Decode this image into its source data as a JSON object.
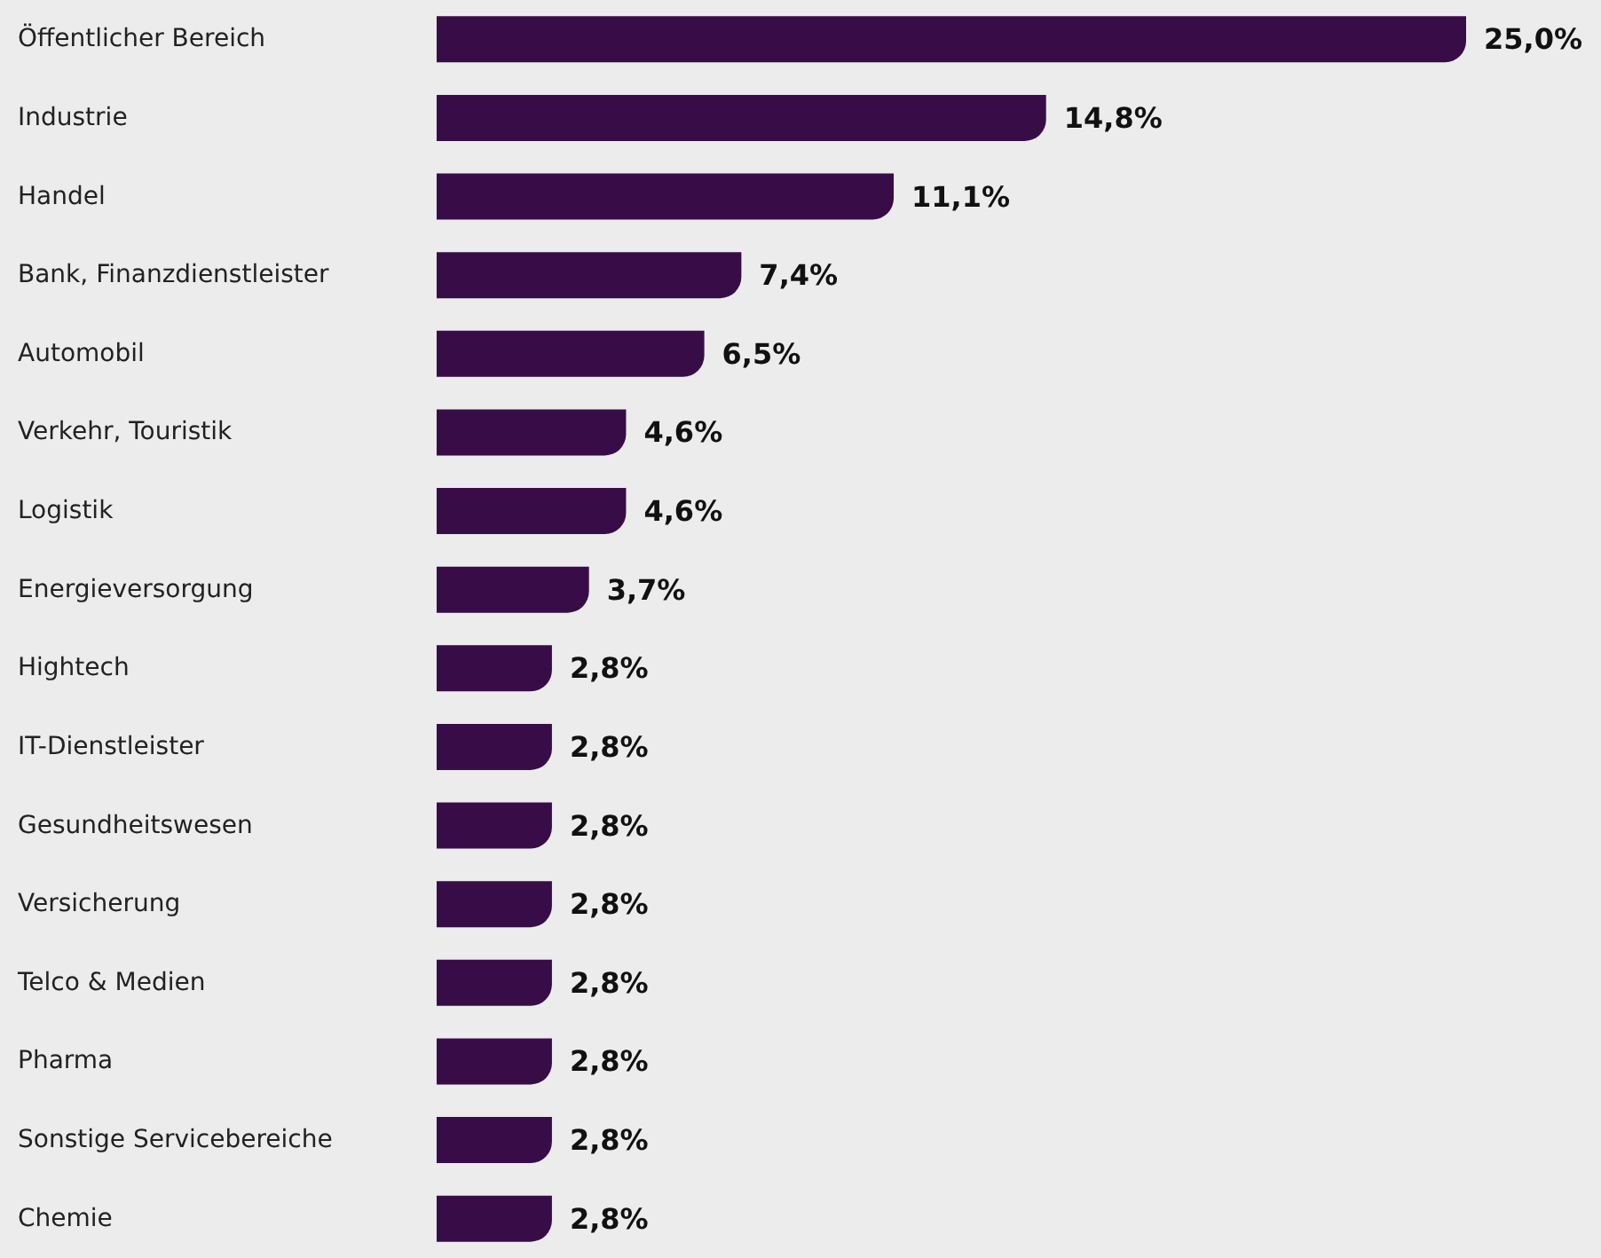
{
  "chart_data": {
    "type": "bar",
    "orientation": "horizontal",
    "categories": [
      "Öffentlicher Bereich",
      "Industrie",
      "Handel",
      "Bank, Finanzdienstleister",
      "Automobil",
      "Verkehr, Touristik",
      "Logistik",
      "Energieversorgung",
      "Hightech",
      "IT-Dienstleister",
      "Gesundheitswesen",
      "Versicherung",
      "Telco & Medien",
      "Pharma",
      "Sonstige Servicebereiche",
      "Chemie"
    ],
    "values": [
      25.0,
      14.8,
      11.1,
      7.4,
      6.5,
      4.6,
      4.6,
      3.7,
      2.8,
      2.8,
      2.8,
      2.8,
      2.8,
      2.8,
      2.8,
      2.8
    ],
    "value_labels": [
      "25,0%",
      "14,8%",
      "11,1%",
      "7,4%",
      "6,5%",
      "4,6%",
      "4,6%",
      "3,7%",
      "2,8%",
      "2,8%",
      "2,8%",
      "2,8%",
      "2,8%",
      "2,8%",
      "2,8%",
      "2,8%"
    ],
    "color": "#380d47"
  }
}
